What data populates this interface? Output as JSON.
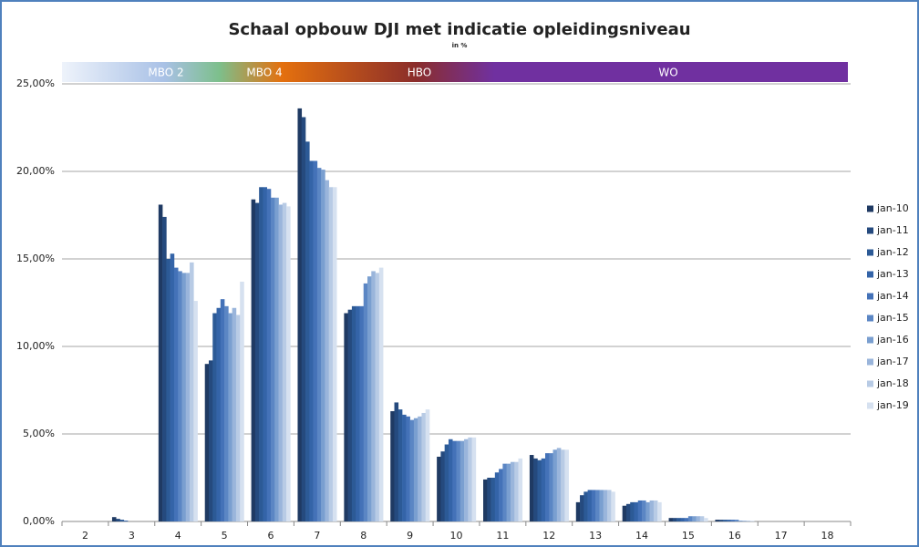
{
  "chart_data": {
    "type": "bar",
    "title": "Schaal opbouw DJI met indicatie opleidingsniveau",
    "subtitle": "in %",
    "level_bands": [
      "MBO 2",
      "MBO 4",
      "HBO",
      "WO"
    ],
    "categories": [
      "2",
      "3",
      "4",
      "5",
      "6",
      "7",
      "8",
      "9",
      "10",
      "11",
      "12",
      "13",
      "14",
      "15",
      "16",
      "17",
      "18"
    ],
    "ylim": [
      0,
      25
    ],
    "yticks": [
      {
        "value": 0,
        "label": "0,00%"
      },
      {
        "value": 5,
        "label": "5,00%"
      },
      {
        "value": 10,
        "label": "10,00%"
      },
      {
        "value": 15,
        "label": "15,00%"
      },
      {
        "value": 20,
        "label": "20,00%"
      },
      {
        "value": 25,
        "label": "25,00%"
      }
    ],
    "grid": true,
    "legend": "right",
    "series": [
      {
        "name": "jan-10",
        "color": "#1f3a63",
        "values": [
          0,
          0.25,
          18.1,
          9.0,
          18.4,
          23.6,
          11.9,
          6.3,
          3.7,
          2.4,
          3.8,
          1.1,
          0.9,
          0.2,
          0.1,
          0,
          0
        ]
      },
      {
        "name": "jan-11",
        "color": "#254a7e",
        "values": [
          0,
          0.15,
          17.4,
          9.2,
          18.2,
          23.1,
          12.1,
          6.8,
          4.0,
          2.5,
          3.6,
          1.5,
          1.0,
          0.2,
          0.1,
          0,
          0
        ]
      },
      {
        "name": "jan-12",
        "color": "#2c5a96",
        "values": [
          0,
          0.1,
          15.0,
          11.9,
          19.1,
          21.7,
          12.3,
          6.4,
          4.4,
          2.5,
          3.5,
          1.7,
          1.1,
          0.2,
          0.1,
          0,
          0
        ]
      },
      {
        "name": "jan-13",
        "color": "#3464a8",
        "values": [
          0,
          0.05,
          15.3,
          12.2,
          19.1,
          20.6,
          12.3,
          6.1,
          4.7,
          2.8,
          3.6,
          1.8,
          1.1,
          0.2,
          0.1,
          0,
          0
        ]
      },
      {
        "name": "jan-14",
        "color": "#4472b8",
        "values": [
          0,
          0,
          14.5,
          12.7,
          19.0,
          20.6,
          12.3,
          6.0,
          4.6,
          3.0,
          3.9,
          1.8,
          1.2,
          0.2,
          0.1,
          0,
          0
        ]
      },
      {
        "name": "jan-15",
        "color": "#5b86c4",
        "values": [
          0,
          0,
          14.3,
          12.3,
          18.5,
          20.2,
          13.6,
          5.8,
          4.6,
          3.3,
          3.9,
          1.8,
          1.2,
          0.3,
          0.1,
          0,
          0
        ]
      },
      {
        "name": "jan-16",
        "color": "#7a9fd0",
        "values": [
          0,
          0,
          14.2,
          11.9,
          18.5,
          20.1,
          14.0,
          5.9,
          4.6,
          3.3,
          4.1,
          1.8,
          1.1,
          0.3,
          0.05,
          0,
          0
        ]
      },
      {
        "name": "jan-17",
        "color": "#9ab5db",
        "values": [
          0,
          0,
          14.2,
          12.2,
          18.1,
          19.5,
          14.3,
          6.0,
          4.7,
          3.4,
          4.2,
          1.8,
          1.2,
          0.3,
          0.05,
          0,
          0
        ]
      },
      {
        "name": "jan-18",
        "color": "#b8cbe5",
        "values": [
          0,
          0,
          14.8,
          11.8,
          18.2,
          19.1,
          14.2,
          6.2,
          4.8,
          3.4,
          4.1,
          1.8,
          1.2,
          0.3,
          0.05,
          0,
          0
        ]
      },
      {
        "name": "jan-19",
        "color": "#d6e1f0",
        "values": [
          0,
          0,
          12.6,
          13.7,
          18.0,
          19.1,
          14.5,
          6.4,
          4.8,
          3.6,
          4.1,
          1.7,
          1.1,
          0.2,
          0.05,
          0,
          0
        ]
      }
    ]
  }
}
